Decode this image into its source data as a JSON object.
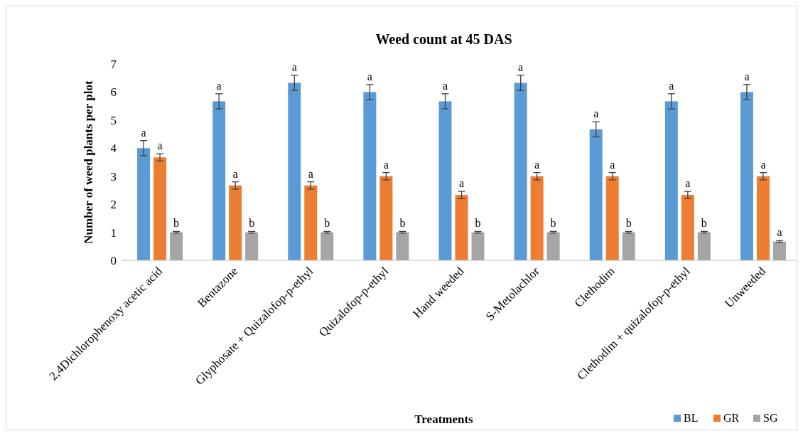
{
  "chart_data": {
    "type": "bar",
    "title": "Weed count at 45 DAS",
    "xlabel": "Treatments",
    "ylabel": "Number of weed plants per plot",
    "categories": [
      "2,4Dichlorophenoxy acetic acid",
      "Bentazone",
      "Glyphosate + Quizalofop-p-ethyl",
      "Quizalofop-p-ethyl",
      "Hand weeded",
      "S-Metolachlor",
      "Clethodim",
      "Clethodim + quizalofop-p-ethyl",
      "Unweeded"
    ],
    "series": [
      {
        "name": "BL",
        "color": "#5b9bd5",
        "values": [
          4,
          5.67,
          6.33,
          6,
          5.67,
          6.33,
          4.67,
          5.67,
          6
        ],
        "errors": [
          0.27,
          0.27,
          0.27,
          0.27,
          0.27,
          0.27,
          0.27,
          0.27,
          0.27
        ],
        "value_labels": [
          "a",
          "a",
          "a",
          "a",
          "a",
          "a",
          "a",
          "a",
          "a"
        ]
      },
      {
        "name": "GR",
        "color": "#ed7d31",
        "values": [
          3.67,
          2.67,
          2.67,
          3,
          2.33,
          3,
          3,
          2.33,
          3
        ],
        "errors": [
          0.13,
          0.13,
          0.13,
          0.13,
          0.13,
          0.13,
          0.13,
          0.13,
          0.13
        ],
        "value_labels": [
          "a",
          "a",
          "a",
          "a",
          "a",
          "a",
          "a",
          "a",
          "a"
        ]
      },
      {
        "name": "SG",
        "color": "#a5a5a5",
        "values": [
          1,
          1,
          1,
          1,
          1,
          1,
          1,
          1,
          0.67
        ],
        "errors": [
          0.03,
          0.03,
          0.03,
          0.03,
          0.03,
          0.03,
          0.03,
          0.03,
          0.03
        ],
        "value_labels": [
          "b",
          "b",
          "b",
          "b",
          "b",
          "b",
          "b",
          "b",
          "a"
        ]
      }
    ],
    "ylim": [
      0,
      7
    ],
    "yticks": [
      0,
      1,
      2,
      3,
      4,
      5,
      6,
      7
    ],
    "grid": false,
    "legend": "bottom right"
  }
}
